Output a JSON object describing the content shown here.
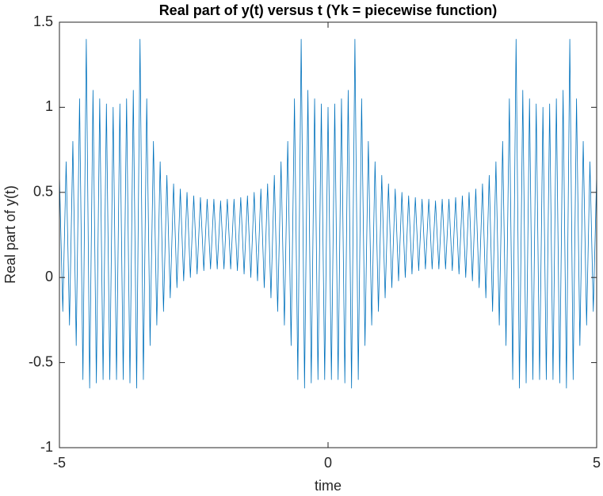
{
  "chart_data": {
    "type": "line",
    "title": "Real part of y(t) versus t (Yk = piecewise function)",
    "xlabel": "time",
    "ylabel": "Real part of y(t)",
    "color": "#0072bd",
    "xlim": [
      -5,
      5
    ],
    "ylim": [
      -1,
      1.5
    ],
    "xticks": [
      -5,
      0,
      5
    ],
    "yticks": [
      -1,
      -0.5,
      0,
      0.5,
      1,
      1.5
    ],
    "grid": false,
    "x": [
      -5,
      -4.9375,
      -4.875,
      -4.8125,
      -4.75,
      -4.6875,
      -4.625,
      -4.5625,
      -4.5,
      -4.4375,
      -4.375,
      -4.3125,
      -4.25,
      -4.1875,
      -4.125,
      -4.0625,
      -4,
      -3.9375,
      -3.875,
      -3.8125,
      -3.75,
      -3.6875,
      -3.625,
      -3.5625,
      -3.5,
      -3.4375,
      -3.375,
      -3.3125,
      -3.25,
      -3.1875,
      -3.125,
      -3.0625,
      -3,
      -2.9375,
      -2.875,
      -2.8125,
      -2.75,
      -2.6875,
      -2.625,
      -2.5625,
      -2.5,
      -2.4375,
      -2.375,
      -2.3125,
      -2.25,
      -2.1875,
      -2.125,
      -2.0625,
      -2,
      -1.9375,
      -1.875,
      -1.8125,
      -1.75,
      -1.6875,
      -1.625,
      -1.5625,
      -1.5,
      -1.4375,
      -1.375,
      -1.3125,
      -1.25,
      -1.1875,
      -1.125,
      -1.0625,
      -1,
      -0.9375,
      -0.875,
      -0.8125,
      -0.75,
      -0.6875,
      -0.625,
      -0.5625,
      -0.5,
      -0.4375,
      -0.375,
      -0.3125,
      -0.25,
      -0.1875,
      -0.125,
      -0.0625,
      0,
      0.0625,
      0.125,
      0.1875,
      0.25,
      0.3125,
      0.375,
      0.4375,
      0.5,
      0.5625,
      0.625,
      0.6875,
      0.75,
      0.8125,
      0.875,
      0.9375,
      1,
      1.0625,
      1.125,
      1.1875,
      1.25,
      1.3125,
      1.375,
      1.4375,
      1.5,
      1.5625,
      1.625,
      1.6875,
      1.75,
      1.8125,
      1.875,
      1.9375,
      2,
      2.0625,
      2.125,
      2.1875,
      2.25,
      2.3125,
      2.375,
      2.4375,
      2.5,
      2.5625,
      2.625,
      2.6875,
      2.75,
      2.8125,
      2.875,
      2.9375,
      3,
      3.0625,
      3.125,
      3.1875,
      3.25,
      3.3125,
      3.375,
      3.4375,
      3.5,
      3.5625,
      3.625,
      3.6875,
      3.75,
      3.8125,
      3.875,
      3.9375,
      4,
      4.0625,
      4.125,
      4.1875,
      4.25,
      4.3125,
      4.375,
      4.4375,
      4.5,
      4.5625,
      4.625,
      4.6875,
      4.75,
      4.8125,
      4.875,
      4.9375,
      5
    ],
    "values": [
      0.6,
      -0.2,
      0.68,
      -0.28,
      0.8,
      -0.4,
      1.05,
      -0.6,
      1.4,
      -0.65,
      1.1,
      -0.62,
      1.05,
      -0.6,
      1.02,
      -0.6,
      1.0,
      -0.6,
      1.02,
      -0.6,
      1.05,
      -0.62,
      1.1,
      -0.65,
      1.4,
      -0.6,
      1.05,
      -0.4,
      0.8,
      -0.28,
      0.68,
      -0.2,
      0.6,
      -0.12,
      0.55,
      -0.06,
      0.52,
      -0.02,
      0.5,
      0.0,
      0.48,
      0.02,
      0.47,
      0.04,
      0.46,
      0.05,
      0.46,
      0.05,
      0.45,
      0.05,
      0.46,
      0.05,
      0.46,
      0.04,
      0.47,
      0.02,
      0.48,
      0.0,
      0.5,
      -0.02,
      0.52,
      -0.06,
      0.55,
      -0.12,
      0.6,
      -0.2,
      0.68,
      -0.28,
      0.8,
      -0.4,
      1.05,
      -0.6,
      1.4,
      -0.65,
      1.1,
      -0.62,
      1.05,
      -0.6,
      1.02,
      -0.6,
      1.0,
      -0.6,
      1.02,
      -0.6,
      1.05,
      -0.62,
      1.1,
      -0.65,
      1.4,
      -0.6,
      1.05,
      -0.4,
      0.8,
      -0.28,
      0.68,
      -0.2,
      0.6,
      -0.12,
      0.55,
      -0.06,
      0.52,
      -0.02,
      0.5,
      0.0,
      0.48,
      0.02,
      0.47,
      0.04,
      0.46,
      0.05,
      0.46,
      0.05,
      0.45,
      0.05,
      0.46,
      0.05,
      0.46,
      0.04,
      0.47,
      0.02,
      0.48,
      0.0,
      0.5,
      -0.02,
      0.52,
      -0.06,
      0.55,
      -0.12,
      0.6,
      -0.2,
      0.68,
      -0.28,
      0.8,
      -0.4,
      1.05,
      -0.6,
      1.4,
      -0.65,
      1.1,
      -0.62,
      1.05,
      -0.6,
      1.02,
      -0.6,
      1.0,
      -0.6,
      1.02,
      -0.6,
      1.05,
      -0.62,
      1.1,
      -0.65,
      1.4,
      -0.6,
      1.05,
      -0.4,
      0.8,
      -0.28,
      0.68,
      -0.2,
      0.6
    ]
  }
}
